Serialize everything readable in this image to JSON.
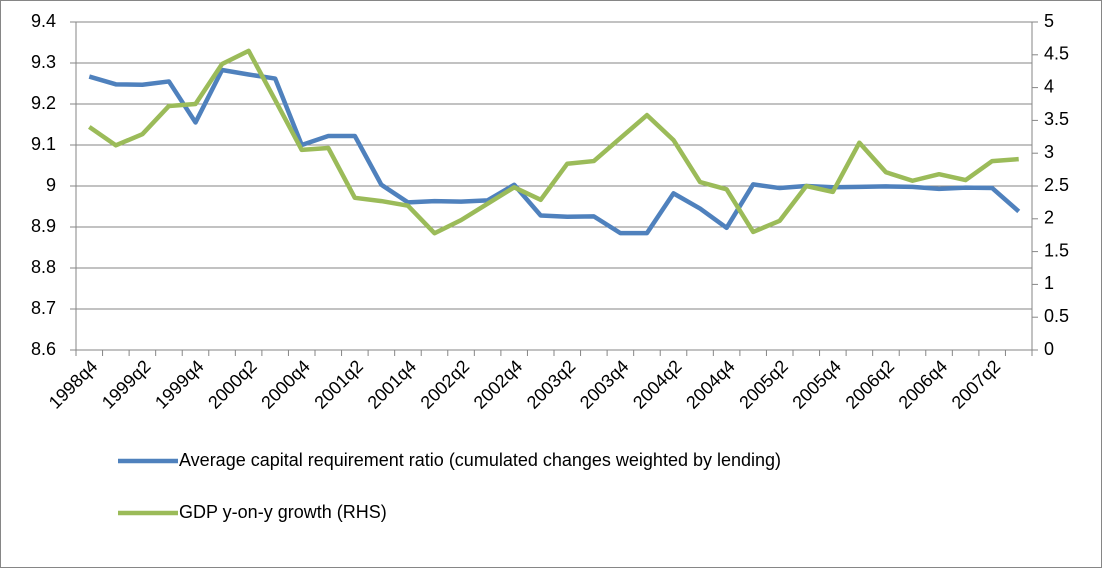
{
  "chart_data": {
    "type": "line",
    "categories": [
      "1998q4",
      null,
      "1999q2",
      null,
      "1999q4",
      null,
      "2000q2",
      null,
      "2000q4",
      null,
      "2001q2",
      null,
      "2001q4",
      null,
      "2002q2",
      null,
      "2002q4",
      null,
      "2003q2",
      null,
      "2003q4",
      null,
      "2004q2",
      null,
      "2004q4",
      null,
      "2005q2",
      null,
      "2005q4",
      null,
      "2006q2",
      null,
      "2006q4",
      null,
      "2007q2",
      null
    ],
    "series": [
      {
        "name": "Average capital requirement ratio (cumulated changes weighted by lending)",
        "color": "#4f81bd",
        "values": [
          9.267,
          9.248,
          9.247,
          9.255,
          9.155,
          9.283,
          9.272,
          9.262,
          9.1,
          9.122,
          9.122,
          9.003,
          8.96,
          8.963,
          8.962,
          8.965,
          9.003,
          8.928,
          8.925,
          8.926,
          8.885,
          8.885,
          8.982,
          8.945,
          8.898,
          9.004,
          8.995,
          9.0,
          8.997,
          8.998,
          8.999,
          8.998,
          8.993,
          8.996,
          8.995,
          8.938
        ]
      },
      {
        "name": "GDP y-on-y growth (RHS)",
        "color": "#9bbb59",
        "axis": "y2",
        "values": [
          3.4,
          3.12,
          3.29,
          3.72,
          3.75,
          4.36,
          4.56,
          3.81,
          3.05,
          3.08,
          2.32,
          2.27,
          2.2,
          1.78,
          1.98,
          2.23,
          2.48,
          2.29,
          2.84,
          2.88,
          3.23,
          3.58,
          3.2,
          2.56,
          2.45,
          1.8,
          1.97,
          2.5,
          2.41,
          3.16,
          2.71,
          2.58,
          2.68,
          2.59,
          2.88,
          2.91
        ]
      }
    ],
    "ylim": [
      8.6,
      9.4
    ],
    "yticks": [
      8.6,
      8.7,
      8.8,
      8.9,
      9,
      9.1,
      9.2,
      9.3,
      9.4
    ],
    "y2lim": [
      0,
      5
    ],
    "y2ticks": [
      0,
      0.5,
      1,
      1.5,
      2,
      2.5,
      3,
      3.5,
      4,
      4.5,
      5
    ],
    "grid": true,
    "legend": "bottom"
  }
}
